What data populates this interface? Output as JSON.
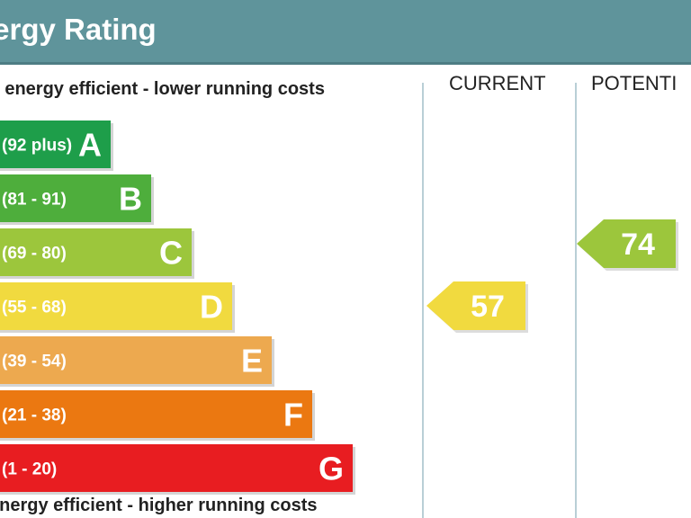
{
  "header": {
    "title": "nergy Rating"
  },
  "captions": {
    "top": "st energy efficient - lower running costs",
    "bottom": "energy efficient - higher running costs"
  },
  "columns": {
    "current": "CURRENT",
    "potential": "POTENTI"
  },
  "chart_data": {
    "type": "bar",
    "title": "",
    "categories": [
      "A",
      "B",
      "C",
      "D",
      "E",
      "F",
      "G"
    ],
    "ranges": [
      "(92 plus)",
      "(81 - 91)",
      "(69 - 80)",
      "(55 - 68)",
      "(39 - 54)",
      "(21 - 38)",
      "(1 - 20)"
    ],
    "colors": [
      "#1e9e4a",
      "#4eae3c",
      "#9cc63c",
      "#f1da3f",
      "#eda94f",
      "#eb7811",
      "#e81d21"
    ],
    "current": {
      "value": 57,
      "band": "D",
      "color": "#f1da3f"
    },
    "potential": {
      "value": 74,
      "band": "C",
      "color": "#9cc63c"
    }
  }
}
